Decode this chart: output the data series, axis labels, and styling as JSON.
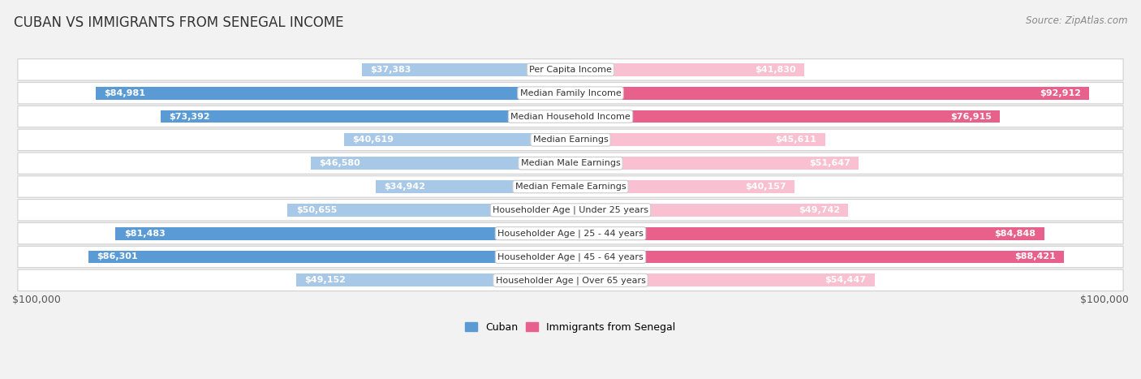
{
  "title": "CUBAN VS IMMIGRANTS FROM SENEGAL INCOME",
  "source": "Source: ZipAtlas.com",
  "categories": [
    "Per Capita Income",
    "Median Family Income",
    "Median Household Income",
    "Median Earnings",
    "Median Male Earnings",
    "Median Female Earnings",
    "Householder Age | Under 25 years",
    "Householder Age | 25 - 44 years",
    "Householder Age | 45 - 64 years",
    "Householder Age | Over 65 years"
  ],
  "cuban_values": [
    37383,
    84981,
    73392,
    40619,
    46580,
    34942,
    50655,
    81483,
    86301,
    49152
  ],
  "senegal_values": [
    41830,
    92912,
    76915,
    45611,
    51647,
    40157,
    49742,
    84848,
    88421,
    54447
  ],
  "cuban_labels": [
    "$37,383",
    "$84,981",
    "$73,392",
    "$40,619",
    "$46,580",
    "$34,942",
    "$50,655",
    "$81,483",
    "$86,301",
    "$49,152"
  ],
  "senegal_labels": [
    "$41,830",
    "$92,912",
    "$76,915",
    "$45,611",
    "$51,647",
    "$40,157",
    "$49,742",
    "$84,848",
    "$88,421",
    "$54,447"
  ],
  "max_value": 100000,
  "cuban_color_light": "#a8c8e8",
  "cuban_color_dark": "#5b9bd5",
  "senegal_color_light": "#f8c0d0",
  "senegal_color_dark": "#e8608c",
  "inside_label_threshold": 20000,
  "legend_cuban": "Cuban",
  "legend_senegal": "Immigrants from Senegal",
  "xlabel_left": "$100,000",
  "xlabel_right": "$100,000",
  "background_color": "#f2f2f2",
  "row_bg_color": "#ffffff",
  "title_fontsize": 12,
  "source_fontsize": 8.5,
  "label_fontsize": 8,
  "category_fontsize": 8,
  "legend_fontsize": 9,
  "axis_label_fontsize": 9
}
